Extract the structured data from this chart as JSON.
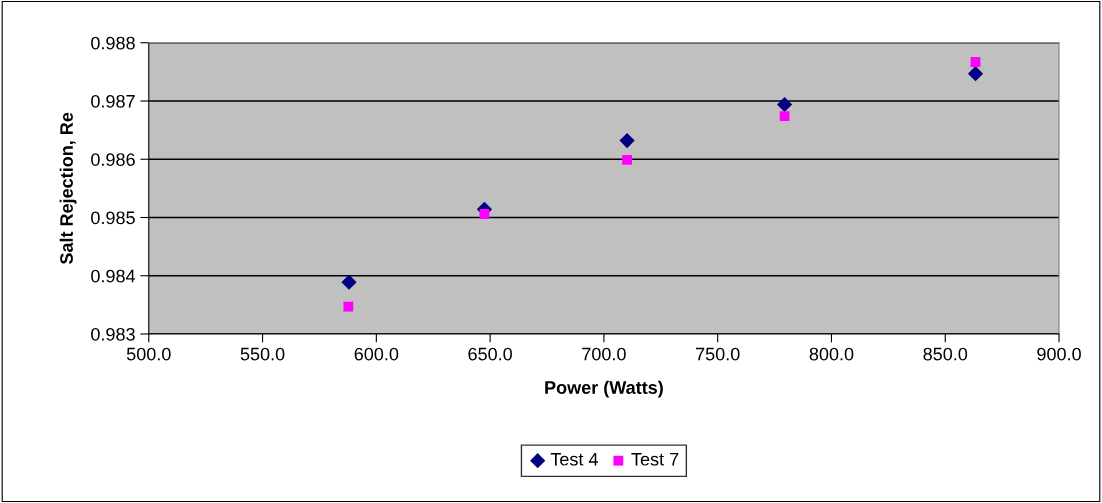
{
  "chart_data": {
    "type": "scatter",
    "xlabel": "Power (Watts)",
    "ylabel": "Salt Rejection, Re",
    "xlim": [
      500,
      900
    ],
    "ylim": [
      0.983,
      0.988
    ],
    "xticks": [
      {
        "value": 500,
        "label": "500.0"
      },
      {
        "value": 550,
        "label": "550.0"
      },
      {
        "value": 600,
        "label": "600.0"
      },
      {
        "value": 650,
        "label": "650.0"
      },
      {
        "value": 700,
        "label": "700.0"
      },
      {
        "value": 750,
        "label": "750.0"
      },
      {
        "value": 800,
        "label": "800.0"
      },
      {
        "value": 850,
        "label": "850.0"
      },
      {
        "value": 900,
        "label": "900.0"
      }
    ],
    "yticks": [
      0.983,
      0.984,
      0.985,
      0.986,
      0.987,
      0.988
    ],
    "grid": "y",
    "legend": "bottom",
    "series": [
      {
        "name": "Test 4",
        "color": "#000080",
        "marker": "diamond",
        "x": [
          588,
          647.5,
          710.2,
          779.4,
          863.3
        ],
        "values": [
          0.98389,
          0.98514,
          0.98632,
          0.98694,
          0.98747
        ]
      },
      {
        "name": "Test 7",
        "color": "#ff00ff",
        "marker": "square",
        "x": [
          587.7,
          647.5,
          710.2,
          779.4,
          863.3
        ],
        "values": [
          0.98347,
          0.98506,
          0.98599,
          0.98674,
          0.98767
        ]
      }
    ]
  }
}
